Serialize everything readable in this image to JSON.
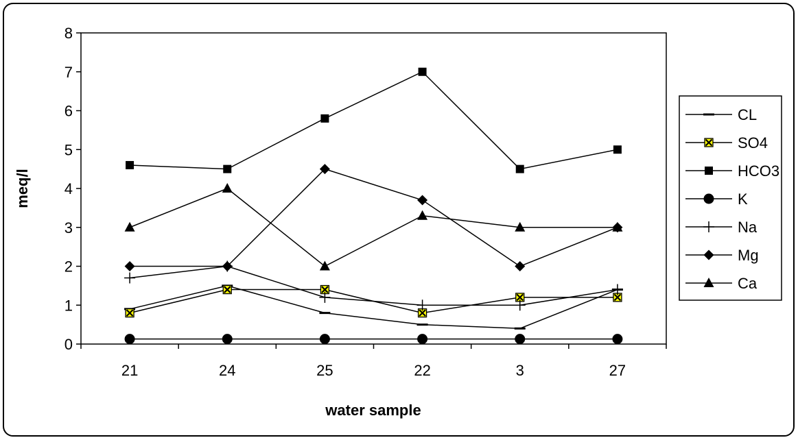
{
  "chart_data": {
    "type": "line",
    "title": "",
    "xlabel": "water sample",
    "ylabel": "meq/l",
    "categories": [
      "21",
      "24",
      "25",
      "22",
      "3",
      "27"
    ],
    "ylim": [
      0,
      8
    ],
    "yticks": [
      0,
      1,
      2,
      3,
      4,
      5,
      6,
      7,
      8
    ],
    "grid": false,
    "legend_position": "right",
    "series": [
      {
        "name": "CL",
        "marker": "dash",
        "color": "#000000",
        "values": [
          0.9,
          1.5,
          0.8,
          0.5,
          0.4,
          1.4
        ]
      },
      {
        "name": "SO4",
        "marker": "x-square",
        "color": "#000000",
        "marker_fill": "#ffff00",
        "values": [
          0.8,
          1.4,
          1.4,
          0.8,
          1.2,
          1.2
        ]
      },
      {
        "name": "HCO3",
        "marker": "square",
        "color": "#000000",
        "values": [
          4.6,
          4.5,
          5.8,
          7.0,
          4.5,
          5.0
        ]
      },
      {
        "name": "K",
        "marker": "circle",
        "color": "#000000",
        "values": [
          0.13,
          0.13,
          0.13,
          0.13,
          0.13,
          0.13
        ]
      },
      {
        "name": "Na",
        "marker": "plus",
        "color": "#000000",
        "values": [
          1.7,
          2.0,
          1.2,
          1.0,
          1.0,
          1.4
        ]
      },
      {
        "name": "Mg",
        "marker": "diamond",
        "color": "#000000",
        "values": [
          2.0,
          2.0,
          4.5,
          3.7,
          2.0,
          3.0
        ]
      },
      {
        "name": "Ca",
        "marker": "triangle",
        "color": "#000000",
        "values": [
          3.0,
          4.0,
          2.0,
          3.3,
          3.0,
          3.0
        ]
      }
    ]
  }
}
